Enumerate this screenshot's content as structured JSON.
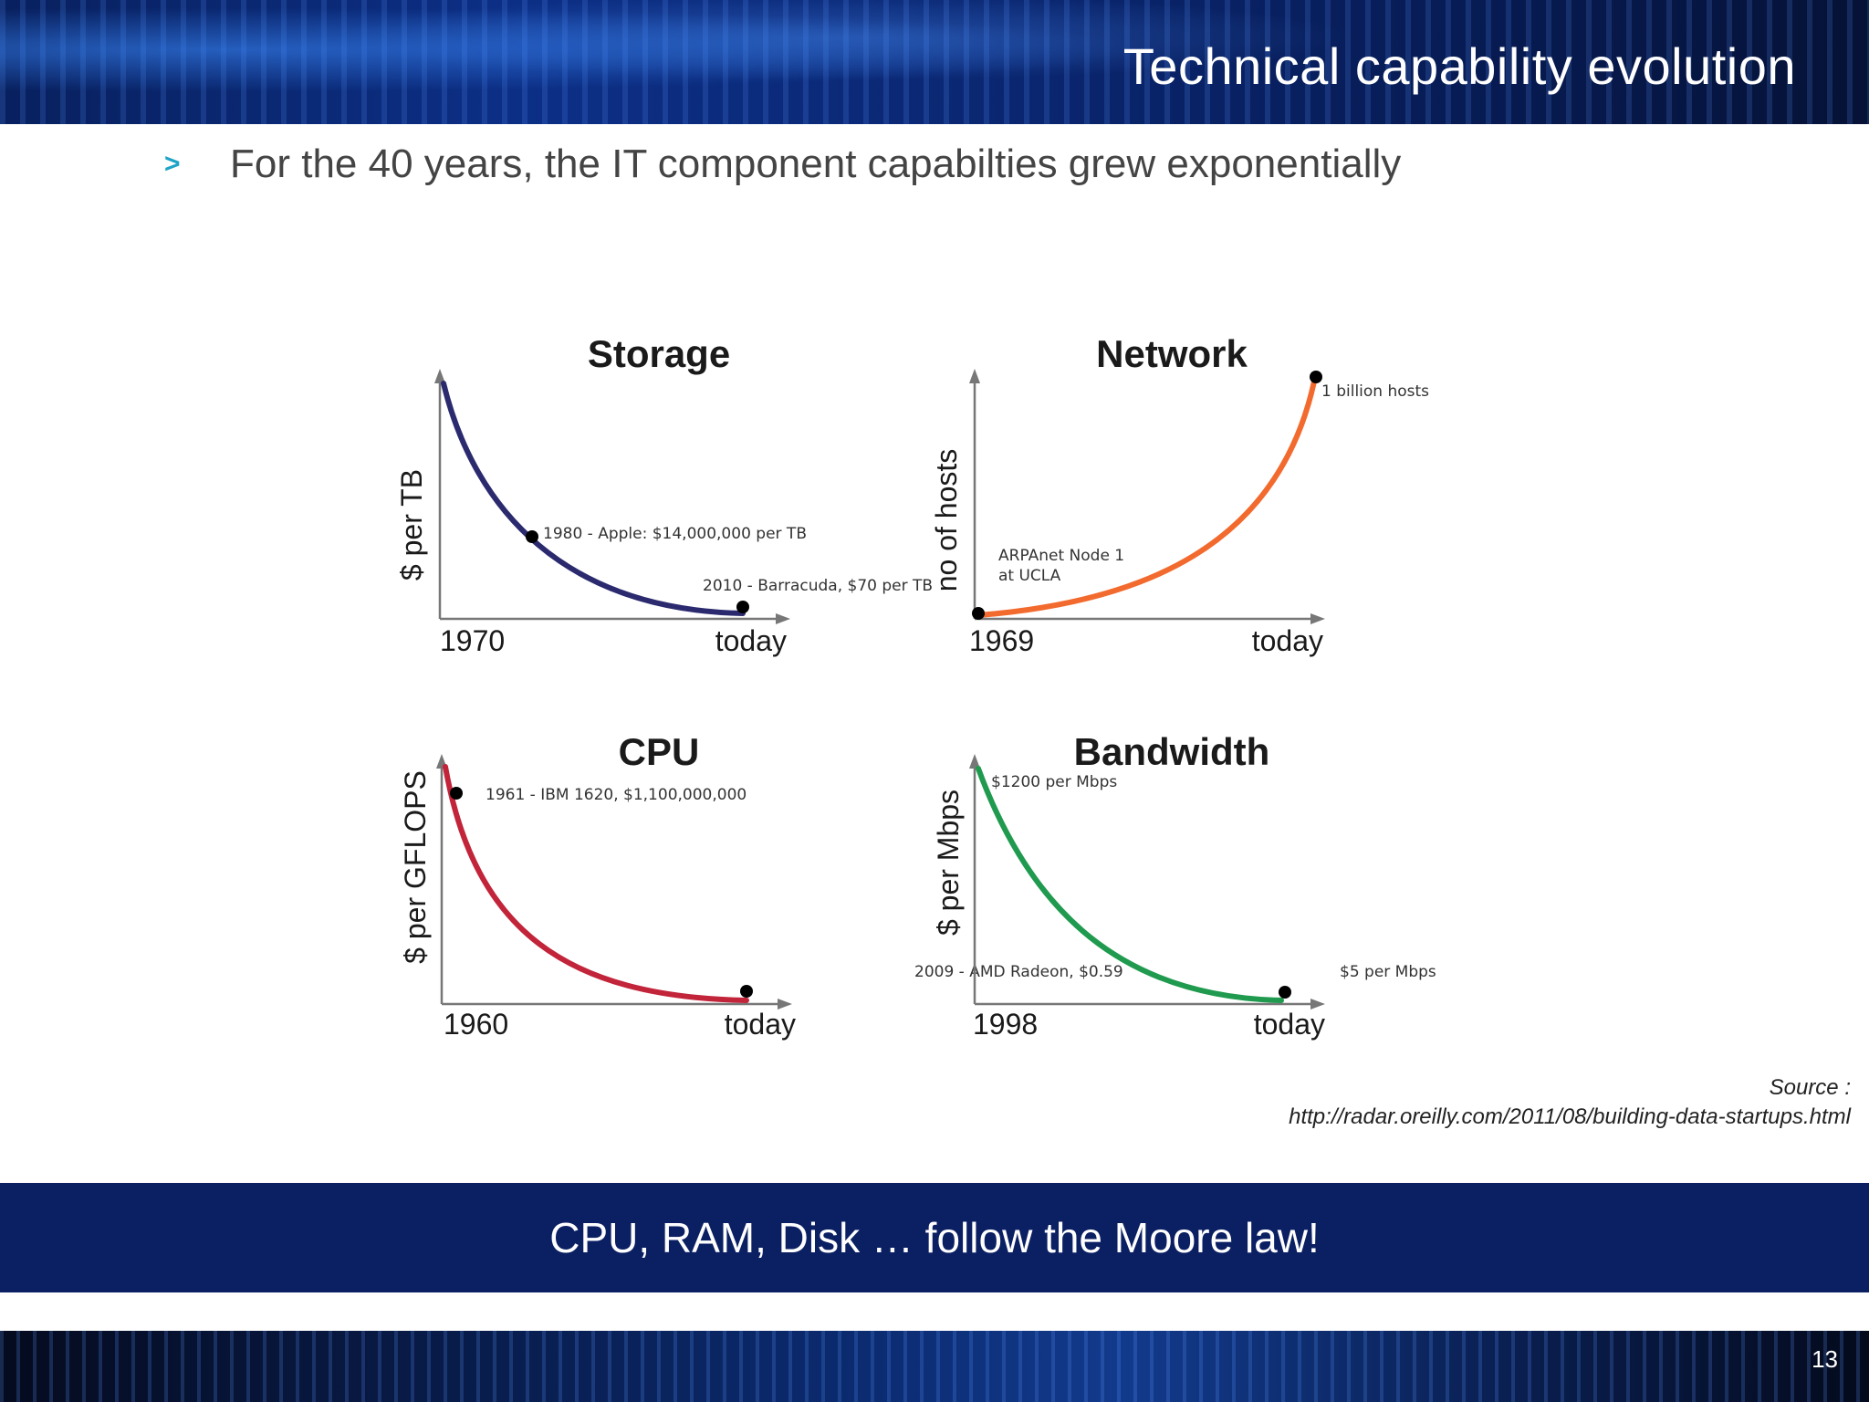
{
  "header": {
    "title": "Technical capability evolution"
  },
  "bullet": {
    "marker": ">",
    "text": "For the 40 years, the IT component capabilties grew exponentially"
  },
  "chart_data": [
    {
      "type": "line",
      "title": "Storage",
      "ylabel": "$ per TB",
      "xlabel": "",
      "x_ticks": [
        "1970",
        "today"
      ],
      "color": "#2b2a6e",
      "trend": "decreasing",
      "points": [
        {
          "label": "1980 - Apple: $14,000,000 per TB"
        },
        {
          "label": "2010 - Barracuda, $70 per TB"
        }
      ]
    },
    {
      "type": "line",
      "title": "Network",
      "ylabel": "no of hosts",
      "xlabel": "",
      "x_ticks": [
        "1969",
        "today"
      ],
      "color": "#f26a2e",
      "trend": "increasing",
      "points": [
        {
          "label_lines": [
            "ARPAnet Node 1",
            "at UCLA"
          ]
        },
        {
          "label": "1 billion hosts"
        }
      ]
    },
    {
      "type": "line",
      "title": "CPU",
      "ylabel": "$ per GFLOPS",
      "xlabel": "",
      "x_ticks": [
        "1960",
        "today"
      ],
      "color": "#c2243a",
      "trend": "decreasing",
      "points": [
        {
          "label": "1961 - IBM 1620, $1,100,000,000"
        },
        {
          "label": "2009  - AMD Radeon, $0.59"
        }
      ]
    },
    {
      "type": "line",
      "title": "Bandwidth",
      "ylabel": "$ per Mbps",
      "xlabel": "",
      "x_ticks": [
        "1998",
        "today"
      ],
      "color": "#1f9a4e",
      "trend": "decreasing",
      "points": [
        {
          "label": "$1200 per Mbps"
        },
        {
          "label": "$5 per Mbps"
        }
      ]
    }
  ],
  "source": {
    "line1": "Source :",
    "line2": "http://radar.oreilly.com/2011/08/building-data-startups.html"
  },
  "banner": {
    "text": "CPU, RAM, Disk … follow the Moore law!"
  },
  "footer": {
    "page_number": "13"
  }
}
